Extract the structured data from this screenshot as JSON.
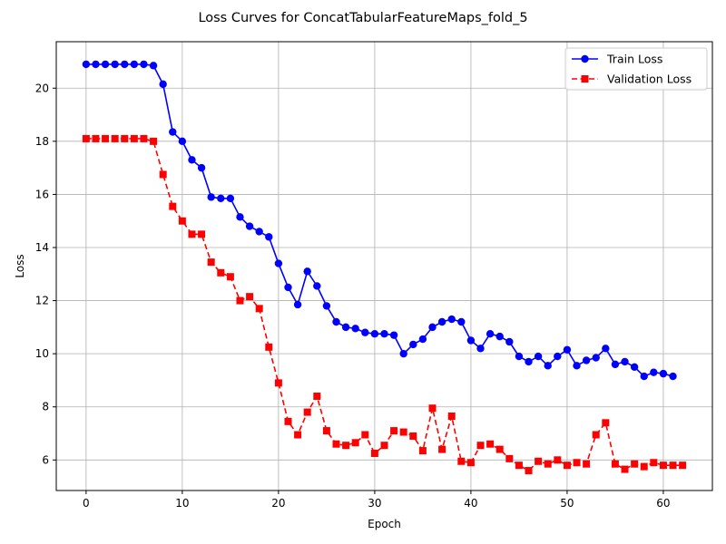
{
  "chart_data": {
    "type": "line",
    "title": "Loss Curves for ConcatTabularFeatureMaps_fold_5",
    "xlabel": "Epoch",
    "ylabel": "Loss",
    "xlim": [
      -3.1,
      65.1
    ],
    "ylim": [
      4.85,
      21.75
    ],
    "xticks": [
      0,
      10,
      20,
      30,
      40,
      50,
      60
    ],
    "yticks": [
      6,
      8,
      10,
      12,
      14,
      16,
      18,
      20
    ],
    "grid": true,
    "legend_position": "top-right",
    "series": [
      {
        "name": "Train Loss",
        "color": "#0000ff",
        "marker": "circle",
        "line_style": "solid",
        "x": [
          0,
          1,
          2,
          3,
          4,
          5,
          6,
          7,
          8,
          9,
          10,
          11,
          12,
          13,
          14,
          15,
          16,
          17,
          18,
          19,
          20,
          21,
          22,
          23,
          24,
          25,
          26,
          27,
          28,
          29,
          30,
          31,
          32,
          33,
          34,
          35,
          36,
          37,
          38,
          39,
          40,
          41,
          42,
          43,
          44,
          45,
          46,
          47,
          48,
          49,
          50,
          51,
          52,
          53,
          54,
          55,
          56,
          57,
          58,
          59,
          60,
          61
        ],
        "values": [
          20.9,
          20.9,
          20.9,
          20.9,
          20.9,
          20.9,
          20.9,
          20.85,
          20.15,
          18.35,
          18.0,
          17.3,
          17.0,
          15.9,
          15.85,
          15.85,
          15.15,
          14.8,
          14.6,
          14.4,
          13.4,
          12.5,
          11.85,
          13.1,
          12.55,
          11.8,
          11.2,
          11.0,
          10.95,
          10.8,
          10.75,
          10.75,
          10.7,
          10.0,
          10.35,
          10.55,
          11.0,
          11.2,
          11.3,
          11.2,
          10.5,
          10.2,
          10.75,
          10.65,
          10.45,
          9.9,
          9.7,
          9.9,
          9.55,
          9.9,
          10.15,
          9.55,
          9.75,
          9.85,
          10.2,
          9.6,
          9.7,
          9.5,
          9.15,
          9.3,
          9.25,
          9.15
        ]
      },
      {
        "name": "Validation Loss",
        "color": "#ff0000",
        "marker": "square",
        "line_style": "dashed",
        "x": [
          0,
          1,
          2,
          3,
          4,
          5,
          6,
          7,
          8,
          9,
          10,
          11,
          12,
          13,
          14,
          15,
          16,
          17,
          18,
          19,
          20,
          21,
          22,
          23,
          24,
          25,
          26,
          27,
          28,
          29,
          30,
          31,
          32,
          33,
          34,
          35,
          36,
          37,
          38,
          39,
          40,
          41,
          42,
          43,
          44,
          45,
          46,
          47,
          48,
          49,
          50,
          51,
          52,
          53,
          54,
          55,
          56,
          57,
          58,
          59,
          60,
          61,
          62
        ],
        "values": [
          18.1,
          18.1,
          18.1,
          18.1,
          18.1,
          18.1,
          18.1,
          18.0,
          16.75,
          15.55,
          15.0,
          14.5,
          14.5,
          13.45,
          13.05,
          12.9,
          12.0,
          12.15,
          11.7,
          10.25,
          8.9,
          7.45,
          6.95,
          7.8,
          8.4,
          7.1,
          6.6,
          6.55,
          6.65,
          6.95,
          6.25,
          6.55,
          7.1,
          7.05,
          6.9,
          6.35,
          7.95,
          6.4,
          7.65,
          5.95,
          5.9,
          6.55,
          6.6,
          6.4,
          6.05,
          5.8,
          5.6,
          5.95,
          5.85,
          6.0,
          5.8,
          5.9,
          5.85,
          6.95,
          7.4,
          5.85,
          5.65,
          5.85,
          5.75,
          5.9,
          5.8,
          5.8,
          5.8
        ]
      }
    ]
  }
}
